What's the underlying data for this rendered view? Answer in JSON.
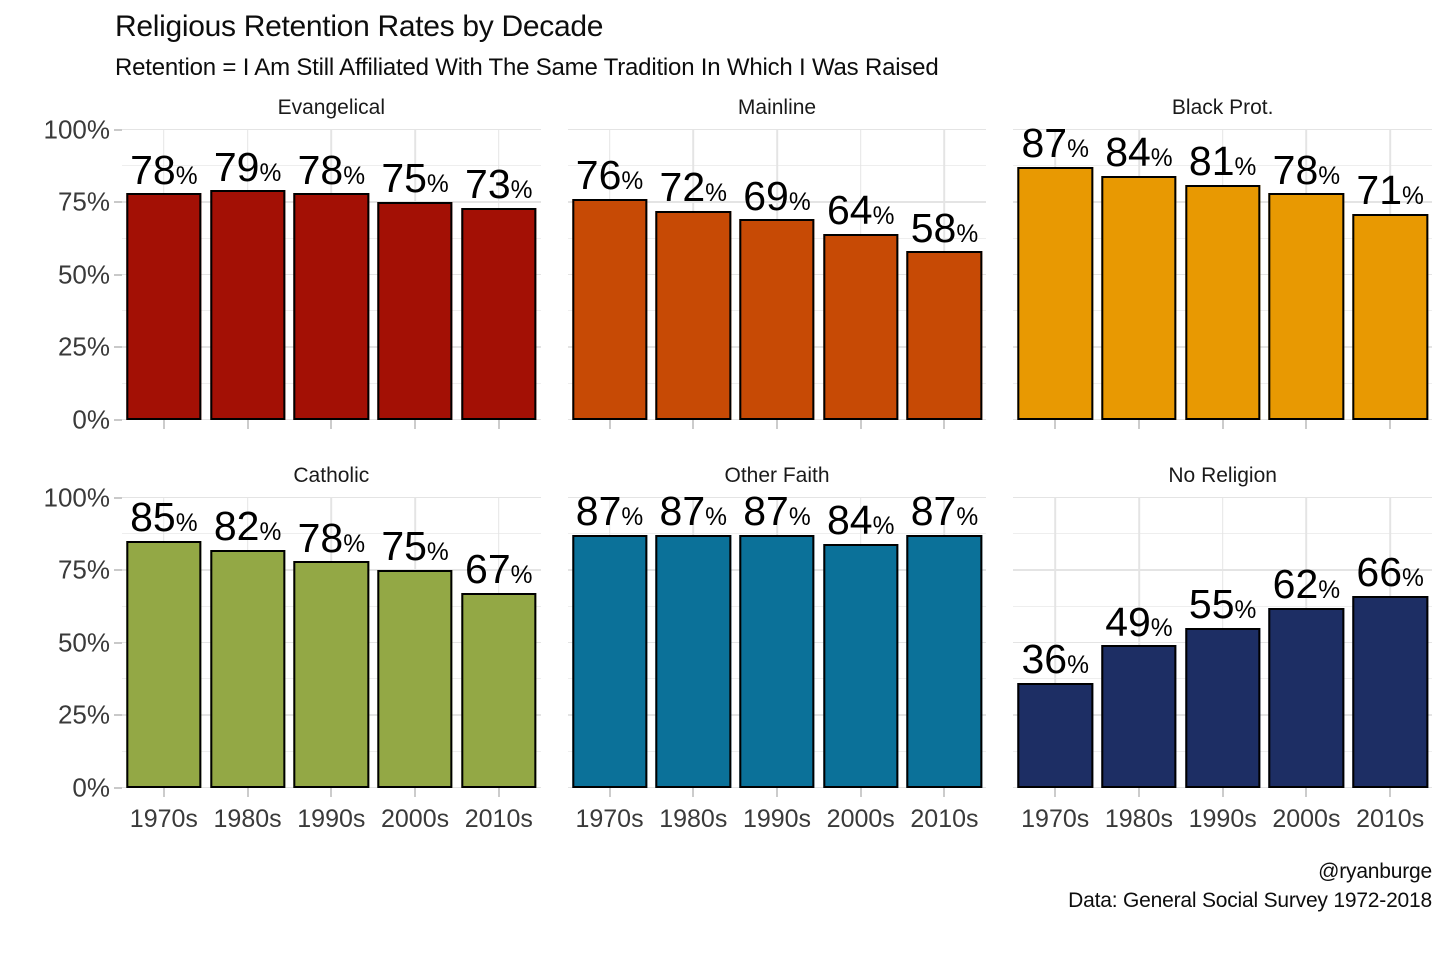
{
  "header": {
    "title": "Religious Retention Rates by Decade",
    "subtitle": "Retention = I Am Still Affiliated With The Same Tradition In Which I Was Raised"
  },
  "footer": {
    "handle": "@ryanburge",
    "source": "Data: General Social Survey 1972-2018"
  },
  "chart_data": {
    "type": "bar",
    "layout": "facet-grid-2x3",
    "categories": [
      "1970s",
      "1980s",
      "1990s",
      "2000s",
      "2010s"
    ],
    "value_suffix": "%",
    "ylim": [
      0,
      100
    ],
    "ytick_labels": [
      "0%",
      "25%",
      "50%",
      "75%",
      "100%"
    ],
    "ytick_values": [
      0,
      25,
      50,
      75,
      100
    ],
    "yminor_values": [
      12.5,
      37.5,
      62.5,
      87.5
    ],
    "grid": "on",
    "bar_border_color": "#000000",
    "grid_color": "#e4e4e4",
    "facets": [
      {
        "title": "Evangelical",
        "color": "#a31005",
        "values": [
          78,
          79,
          78,
          75,
          73
        ],
        "labels": [
          "78%",
          "79%",
          "78%",
          "75%",
          "73%"
        ]
      },
      {
        "title": "Mainline",
        "color": "#c74a05",
        "values": [
          76,
          72,
          69,
          64,
          58
        ],
        "labels": [
          "76%",
          "72%",
          "69%",
          "64%",
          "58%"
        ]
      },
      {
        "title": "Black Prot.",
        "color": "#e89902",
        "values": [
          87,
          84,
          81,
          78,
          71
        ],
        "labels": [
          "87%",
          "84%",
          "81%",
          "78%",
          "71%"
        ]
      },
      {
        "title": "Catholic",
        "color": "#93a845",
        "values": [
          85,
          82,
          78,
          75,
          67
        ],
        "labels": [
          "85%",
          "82%",
          "78%",
          "75%",
          "67%"
        ]
      },
      {
        "title": "Other Faith",
        "color": "#0b7199",
        "values": [
          87,
          87,
          87,
          84,
          87
        ],
        "labels": [
          "87%",
          "87%",
          "87%",
          "84%",
          "87%"
        ]
      },
      {
        "title": "No Religion",
        "color": "#1d2e64",
        "values": [
          36,
          49,
          55,
          62,
          66
        ],
        "labels": [
          "36%",
          "49%",
          "55%",
          "62%",
          "66%"
        ]
      }
    ]
  }
}
